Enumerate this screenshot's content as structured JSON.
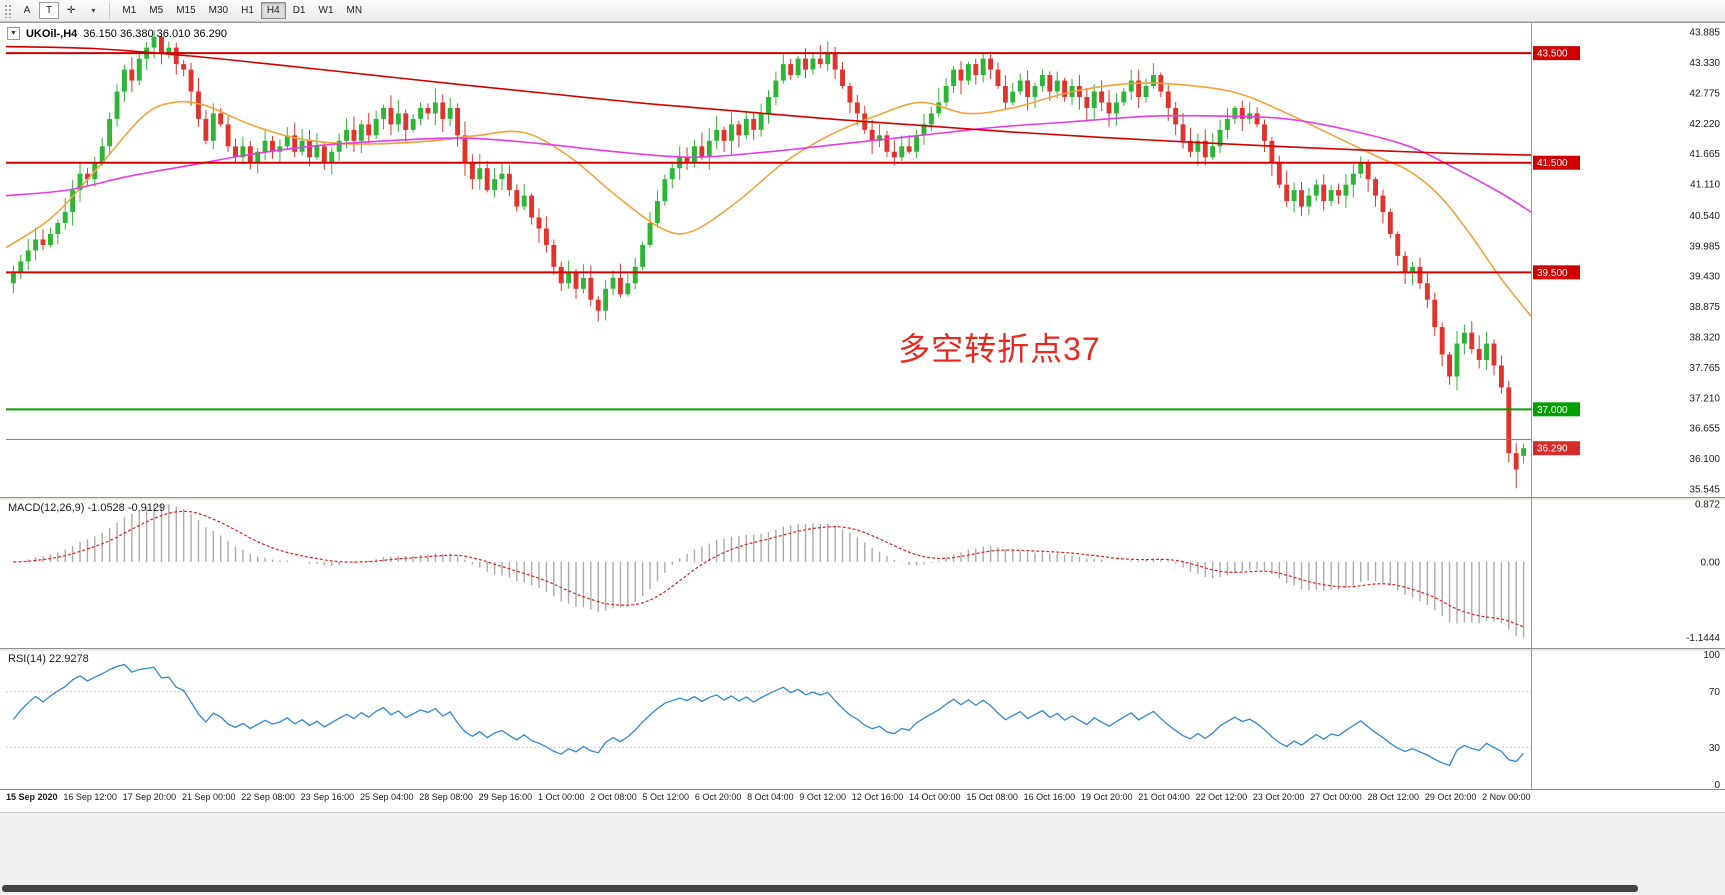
{
  "toolbar": {
    "buttons": [
      {
        "name": "cursor-a-button",
        "label": "A",
        "boxed": false
      },
      {
        "name": "text-t-button",
        "label": "T",
        "boxed": true
      },
      {
        "name": "crosshair-button",
        "label": "✛",
        "boxed": false
      },
      {
        "name": "tools-dropdown-caret",
        "label": "▾",
        "boxed": false
      }
    ],
    "timeframes": [
      "M1",
      "M5",
      "M15",
      "M30",
      "H1",
      "H4",
      "D1",
      "W1",
      "MN"
    ],
    "active_timeframe": "H4"
  },
  "header": {
    "collapse_glyph": "▼",
    "title": "UKOil-,H4",
    "ohlc": "36.150 36.380 36.010 36.290"
  },
  "chart_data": {
    "type": "candlestick",
    "symbol": "UKOil-",
    "timeframe": "H4",
    "ylim": [
      35.4,
      44.05
    ],
    "first_open": 39.3,
    "current_bar": {
      "open": 36.15,
      "high": 36.38,
      "low": 36.01,
      "close": 36.29
    },
    "colors": {
      "up": "#2db535",
      "down": "#e0332c"
    },
    "closes": [
      39.5,
      39.7,
      39.9,
      40.1,
      40.0,
      40.2,
      40.4,
      40.6,
      41.0,
      41.3,
      41.2,
      41.5,
      41.8,
      42.3,
      42.8,
      43.2,
      43.0,
      43.4,
      43.6,
      43.8,
      43.5,
      43.6,
      43.3,
      43.2,
      42.8,
      42.3,
      41.9,
      42.4,
      42.2,
      41.8,
      41.6,
      41.8,
      41.5,
      41.7,
      41.9,
      41.7,
      41.8,
      42.0,
      41.7,
      41.9,
      41.6,
      41.8,
      41.5,
      41.7,
      41.9,
      42.1,
      41.9,
      42.2,
      42.0,
      42.3,
      42.5,
      42.2,
      42.4,
      42.1,
      42.3,
      42.5,
      42.4,
      42.6,
      42.3,
      42.5,
      42.0,
      41.5,
      41.2,
      41.4,
      41.0,
      41.2,
      41.3,
      41.0,
      40.7,
      40.9,
      40.5,
      40.3,
      40.0,
      39.6,
      39.3,
      39.5,
      39.2,
      39.4,
      39.0,
      38.8,
      39.2,
      39.4,
      39.1,
      39.3,
      39.6,
      40.0,
      40.4,
      40.8,
      41.2,
      41.4,
      41.6,
      41.5,
      41.8,
      41.6,
      41.9,
      42.1,
      41.9,
      42.2,
      42.0,
      42.3,
      42.1,
      42.4,
      42.7,
      43.0,
      43.3,
      43.1,
      43.4,
      43.2,
      43.4,
      43.3,
      43.5,
      43.2,
      42.9,
      42.6,
      42.4,
      42.1,
      41.9,
      42.0,
      41.7,
      41.6,
      41.8,
      41.7,
      42.0,
      42.2,
      42.4,
      42.6,
      42.9,
      43.2,
      43.0,
      43.3,
      43.1,
      43.4,
      43.2,
      42.9,
      42.6,
      42.8,
      43.0,
      42.7,
      42.9,
      43.1,
      42.8,
      43.0,
      42.7,
      42.9,
      42.7,
      42.5,
      42.8,
      42.6,
      42.4,
      42.6,
      42.8,
      43.0,
      42.7,
      42.9,
      43.1,
      42.8,
      42.5,
      42.2,
      41.9,
      41.7,
      41.9,
      41.6,
      41.8,
      42.1,
      42.3,
      42.5,
      42.3,
      42.4,
      42.2,
      41.9,
      41.5,
      41.1,
      40.8,
      41.0,
      40.7,
      40.9,
      41.1,
      40.8,
      41.0,
      40.9,
      41.1,
      41.3,
      41.5,
      41.2,
      40.9,
      40.6,
      40.2,
      39.8,
      39.5,
      39.6,
      39.3,
      39.0,
      38.5,
      38.0,
      37.6,
      38.2,
      38.4,
      38.1,
      37.9,
      38.2,
      37.8,
      37.4,
      36.2,
      35.9,
      36.29
    ],
    "levels": [
      {
        "price": 43.5,
        "color": "#d10000",
        "width": 2,
        "tag": "43.500",
        "tag_bg": "#d10000"
      },
      {
        "price": 41.5,
        "color": "#d10000",
        "width": 2,
        "tag": "41.500",
        "tag_bg": "#d10000"
      },
      {
        "price": 39.5,
        "color": "#d10000",
        "width": 2,
        "tag": "39.500",
        "tag_bg": "#d10000"
      },
      {
        "price": 37.0,
        "color": "#00a100",
        "width": 2,
        "tag": "37.000",
        "tag_bg": "#00a100"
      },
      {
        "price": 36.45,
        "color": "#6b8cae",
        "width": 1
      }
    ],
    "price_tag": {
      "text": "36.290",
      "price": 36.29,
      "bg": "#d62b2b"
    },
    "price_axis_labels": [
      "43.885",
      "43.330",
      "42.775",
      "42.220",
      "41.665",
      "41.110",
      "40.540",
      "39.985",
      "39.430",
      "38.875",
      "38.320",
      "37.765",
      "37.210",
      "36.655",
      "36.100",
      "35.545"
    ],
    "moving_averages": [
      {
        "name": "ma-fast-orange",
        "color": "#f2a33c",
        "points": [
          [
            0,
            39.95
          ],
          [
            0.03,
            40.5
          ],
          [
            0.06,
            41.4
          ],
          [
            0.09,
            42.35
          ],
          [
            0.11,
            42.6
          ],
          [
            0.13,
            42.55
          ],
          [
            0.16,
            42.2
          ],
          [
            0.19,
            41.95
          ],
          [
            0.22,
            41.85
          ],
          [
            0.25,
            41.85
          ],
          [
            0.28,
            41.9
          ],
          [
            0.31,
            42.0
          ],
          [
            0.34,
            42.05
          ],
          [
            0.37,
            41.6
          ],
          [
            0.4,
            40.9
          ],
          [
            0.43,
            40.3
          ],
          [
            0.45,
            40.25
          ],
          [
            0.48,
            40.8
          ],
          [
            0.51,
            41.5
          ],
          [
            0.54,
            42.0
          ],
          [
            0.57,
            42.35
          ],
          [
            0.6,
            42.6
          ],
          [
            0.63,
            42.4
          ],
          [
            0.66,
            42.5
          ],
          [
            0.7,
            42.8
          ],
          [
            0.74,
            42.95
          ],
          [
            0.78,
            42.9
          ],
          [
            0.81,
            42.75
          ],
          [
            0.84,
            42.4
          ],
          [
            0.87,
            42.0
          ],
          [
            0.9,
            41.6
          ],
          [
            0.92,
            41.35
          ],
          [
            0.94,
            40.9
          ],
          [
            0.96,
            40.2
          ],
          [
            0.98,
            39.4
          ],
          [
            1,
            38.7
          ]
        ]
      },
      {
        "name": "ma-mid-magenta",
        "color": "#e53ce5",
        "points": [
          [
            0,
            40.9
          ],
          [
            0.04,
            41.0
          ],
          [
            0.08,
            41.25
          ],
          [
            0.12,
            41.45
          ],
          [
            0.16,
            41.65
          ],
          [
            0.2,
            41.8
          ],
          [
            0.25,
            41.9
          ],
          [
            0.3,
            41.95
          ],
          [
            0.35,
            41.85
          ],
          [
            0.4,
            41.7
          ],
          [
            0.45,
            41.6
          ],
          [
            0.5,
            41.7
          ],
          [
            0.55,
            41.85
          ],
          [
            0.6,
            42.0
          ],
          [
            0.65,
            42.15
          ],
          [
            0.7,
            42.25
          ],
          [
            0.75,
            42.35
          ],
          [
            0.8,
            42.35
          ],
          [
            0.84,
            42.3
          ],
          [
            0.88,
            42.1
          ],
          [
            0.92,
            41.8
          ],
          [
            0.95,
            41.4
          ],
          [
            0.98,
            40.95
          ],
          [
            1,
            40.6
          ]
        ]
      },
      {
        "name": "ma-slow-red",
        "color": "#d10000",
        "points": [
          [
            0,
            43.62
          ],
          [
            0.06,
            43.58
          ],
          [
            0.12,
            43.45
          ],
          [
            0.18,
            43.28
          ],
          [
            0.24,
            43.1
          ],
          [
            0.3,
            42.92
          ],
          [
            0.36,
            42.75
          ],
          [
            0.42,
            42.58
          ],
          [
            0.48,
            42.44
          ],
          [
            0.54,
            42.3
          ],
          [
            0.6,
            42.18
          ],
          [
            0.66,
            42.06
          ],
          [
            0.72,
            41.96
          ],
          [
            0.78,
            41.87
          ],
          [
            0.84,
            41.79
          ],
          [
            0.9,
            41.72
          ],
          [
            0.95,
            41.67
          ],
          [
            1,
            41.64
          ]
        ]
      }
    ],
    "annotation": {
      "text": "多空转折点37",
      "color": "#e8281e",
      "x_frac": 0.585,
      "price": 38.55
    },
    "macd": {
      "label": "MACD(12,26,9)",
      "values_text": "-1.0528 -0.9129",
      "fast": 12,
      "slow": 26,
      "signal": 9,
      "ylim": [
        -1.3,
        0.95
      ],
      "scale_to": {
        "max": 0.872,
        "min": -1.1444
      },
      "histogram_color": "#ababab",
      "signal_color": "#e02020",
      "axis_labels": [
        {
          "text": "0.872",
          "value": 0.872
        },
        {
          "text": "0.00",
          "value": 0
        },
        {
          "text": "-1.1444",
          "value": -1.1444
        }
      ]
    },
    "rsi": {
      "label": "RSI(14)",
      "value_text": "22.9278",
      "period": 14,
      "ylim": [
        0,
        100
      ],
      "line_color": "#3585d6",
      "levels": [
        70,
        30
      ],
      "axis_labels": [
        {
          "text": "100",
          "value": 100
        },
        {
          "text": "70",
          "value": 70
        },
        {
          "text": "30",
          "value": 30
        },
        {
          "text": "0",
          "value": 0
        }
      ]
    },
    "time_labels": [
      "15 Sep 2020",
      "16 Sep 12:00",
      "17 Sep 20:00",
      "21 Sep 00:00",
      "22 Sep 08:00",
      "23 Sep 16:00",
      "25 Sep 04:00",
      "28 Sep 08:00",
      "29 Sep 16:00",
      "1 Oct 00:00",
      "2 Oct 08:00",
      "5 Oct 12:00",
      "6 Oct 20:00",
      "8 Oct 04:00",
      "9 Oct 12:00",
      "12 Oct 16:00",
      "14 Oct 00:00",
      "15 Oct 08:00",
      "16 Oct 16:00",
      "19 Oct 20:00",
      "21 Oct 04:00",
      "22 Oct 12:00",
      "23 Oct 20:00",
      "27 Oct 00:00",
      "28 Oct 12:00",
      "29 Oct 20:00",
      "2 Nov 00:00"
    ]
  }
}
